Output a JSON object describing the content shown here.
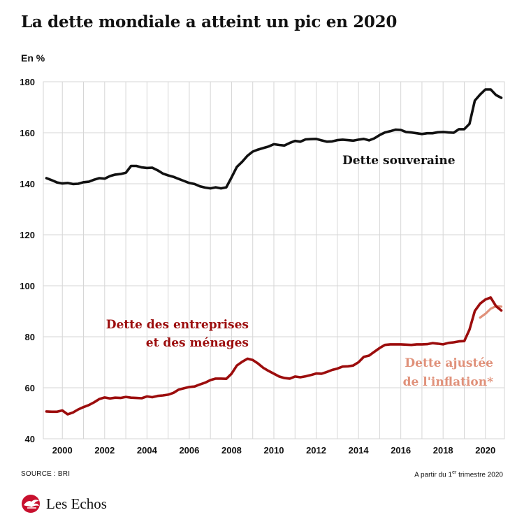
{
  "header": {
    "title": "La dette mondiale a atteint un pic en 2020",
    "unit": "En %"
  },
  "footer": {
    "source": "SOURCE : BRI",
    "note_prefix": "A partir du 1",
    "note_sup": "er",
    "note_suffix": " trimestre 2020",
    "brand": "Les Echos"
  },
  "colors": {
    "sovereign": "#111111",
    "private": "#9c0d0d",
    "inflation_adjusted": "#e0917a",
    "grid": "#d6d6d6",
    "brand_red": "#c8102e"
  },
  "chart_data": {
    "type": "line",
    "title": "La dette mondiale a atteint un pic en 2020",
    "ylabel": "En %",
    "xlim": [
      1999.1,
      2020.9
    ],
    "ylim": [
      40,
      180
    ],
    "x_ticks": [
      2000,
      2002,
      2004,
      2006,
      2008,
      2010,
      2012,
      2014,
      2016,
      2018,
      2020
    ],
    "y_ticks": [
      40,
      60,
      80,
      100,
      120,
      140,
      160,
      180
    ],
    "grid": true,
    "series": [
      {
        "name": "Dette souveraine",
        "label_lines": [
          "Dette souveraine"
        ],
        "color": "#111111",
        "x": [
          1999.25,
          1999.5,
          1999.75,
          2000.0,
          2000.25,
          2000.5,
          2000.75,
          2001.0,
          2001.25,
          2001.5,
          2001.75,
          2002.0,
          2002.25,
          2002.5,
          2002.75,
          2003.0,
          2003.25,
          2003.5,
          2003.75,
          2004.0,
          2004.25,
          2004.5,
          2004.75,
          2005.0,
          2005.25,
          2005.5,
          2005.75,
          2006.0,
          2006.25,
          2006.5,
          2006.75,
          2007.0,
          2007.25,
          2007.5,
          2007.75,
          2008.0,
          2008.25,
          2008.5,
          2008.75,
          2009.0,
          2009.25,
          2009.5,
          2009.75,
          2010.0,
          2010.25,
          2010.5,
          2010.75,
          2011.0,
          2011.25,
          2011.5,
          2011.75,
          2012.0,
          2012.25,
          2012.5,
          2012.75,
          2013.0,
          2013.25,
          2013.5,
          2013.75,
          2014.0,
          2014.25,
          2014.5,
          2014.75,
          2015.0,
          2015.25,
          2015.5,
          2015.75,
          2016.0,
          2016.25,
          2016.5,
          2016.75,
          2017.0,
          2017.25,
          2017.5,
          2017.75,
          2018.0,
          2018.25,
          2018.5,
          2018.75,
          2019.0,
          2019.25,
          2019.5,
          2019.75,
          2020.0,
          2020.25,
          2020.5,
          2020.75
        ],
        "values": [
          142.2,
          141.4,
          140.5,
          140.1,
          140.3,
          139.9,
          140.0,
          140.6,
          140.8,
          141.6,
          142.2,
          142.0,
          143.0,
          143.6,
          143.8,
          144.3,
          147.0,
          147.0,
          146.4,
          146.2,
          146.3,
          145.3,
          144.0,
          143.3,
          142.7,
          141.9,
          141.1,
          140.3,
          139.9,
          139.0,
          138.5,
          138.2,
          138.6,
          138.2,
          138.6,
          142.5,
          146.6,
          148.6,
          151.0,
          152.6,
          153.4,
          154.0,
          154.6,
          155.5,
          155.2,
          155.0,
          156.0,
          156.8,
          156.5,
          157.4,
          157.5,
          157.6,
          157.0,
          156.5,
          156.6,
          157.1,
          157.3,
          157.1,
          156.9,
          157.3,
          157.6,
          157.0,
          157.8,
          159.1,
          160.1,
          160.6,
          161.2,
          161.1,
          160.3,
          160.1,
          159.8,
          159.5,
          159.8,
          159.8,
          160.2,
          160.3,
          160.1,
          160.0,
          161.4,
          161.4,
          163.5,
          172.6,
          175.0,
          177.0,
          177.0,
          174.8,
          173.7
        ]
      },
      {
        "name": "Dette des entreprises et des ménages",
        "label_lines": [
          "Dette des entreprises",
          "et des ménages"
        ],
        "color": "#9c0d0d",
        "x": [
          1999.25,
          1999.5,
          1999.75,
          2000.0,
          2000.25,
          2000.5,
          2000.75,
          2001.0,
          2001.25,
          2001.5,
          2001.75,
          2002.0,
          2002.25,
          2002.5,
          2002.75,
          2003.0,
          2003.25,
          2003.5,
          2003.75,
          2004.0,
          2004.25,
          2004.5,
          2004.75,
          2005.0,
          2005.25,
          2005.5,
          2005.75,
          2006.0,
          2006.25,
          2006.5,
          2006.75,
          2007.0,
          2007.25,
          2007.5,
          2007.75,
          2008.0,
          2008.25,
          2008.5,
          2008.75,
          2009.0,
          2009.25,
          2009.5,
          2009.75,
          2010.0,
          2010.25,
          2010.5,
          2010.75,
          2011.0,
          2011.25,
          2011.5,
          2011.75,
          2012.0,
          2012.25,
          2012.5,
          2012.75,
          2013.0,
          2013.25,
          2013.5,
          2013.75,
          2014.0,
          2014.25,
          2014.5,
          2014.75,
          2015.0,
          2015.25,
          2015.5,
          2015.75,
          2016.0,
          2016.25,
          2016.5,
          2016.75,
          2017.0,
          2017.25,
          2017.5,
          2017.75,
          2018.0,
          2018.25,
          2018.5,
          2018.75,
          2019.0,
          2019.25,
          2019.5,
          2019.75,
          2020.0,
          2020.25,
          2020.5,
          2020.75
        ],
        "values": [
          50.7,
          50.6,
          50.6,
          51.1,
          49.6,
          50.3,
          51.5,
          52.4,
          53.2,
          54.3,
          55.6,
          56.2,
          55.8,
          56.1,
          56.0,
          56.4,
          56.1,
          56.0,
          55.9,
          56.6,
          56.3,
          56.8,
          57.0,
          57.3,
          58.0,
          59.3,
          59.8,
          60.3,
          60.5,
          61.3,
          62.0,
          63.0,
          63.6,
          63.6,
          63.5,
          65.5,
          68.7,
          70.2,
          71.4,
          70.9,
          69.5,
          67.8,
          66.6,
          65.5,
          64.4,
          63.8,
          63.6,
          64.4,
          64.1,
          64.5,
          65.0,
          65.6,
          65.5,
          66.2,
          67.0,
          67.5,
          68.3,
          68.4,
          68.7,
          70.0,
          72.1,
          72.6,
          74.1,
          75.6,
          76.8,
          77.0,
          77.0,
          77.0,
          76.9,
          76.8,
          77.0,
          77.0,
          77.1,
          77.5,
          77.3,
          77.0,
          77.6,
          77.8,
          78.2,
          78.3,
          82.8,
          90.1,
          93.0,
          94.6,
          95.4,
          92.0,
          90.3
        ]
      },
      {
        "name": "Dette ajustée de l'inflation*",
        "label_lines": [
          "Dette ajustée",
          "de l'inflation*"
        ],
        "color": "#e0917a",
        "x": [
          2019.75,
          2020.0,
          2020.25,
          2020.5,
          2020.75
        ],
        "values": [
          87.5,
          89.0,
          91.0,
          92.0,
          91.8
        ]
      }
    ]
  }
}
